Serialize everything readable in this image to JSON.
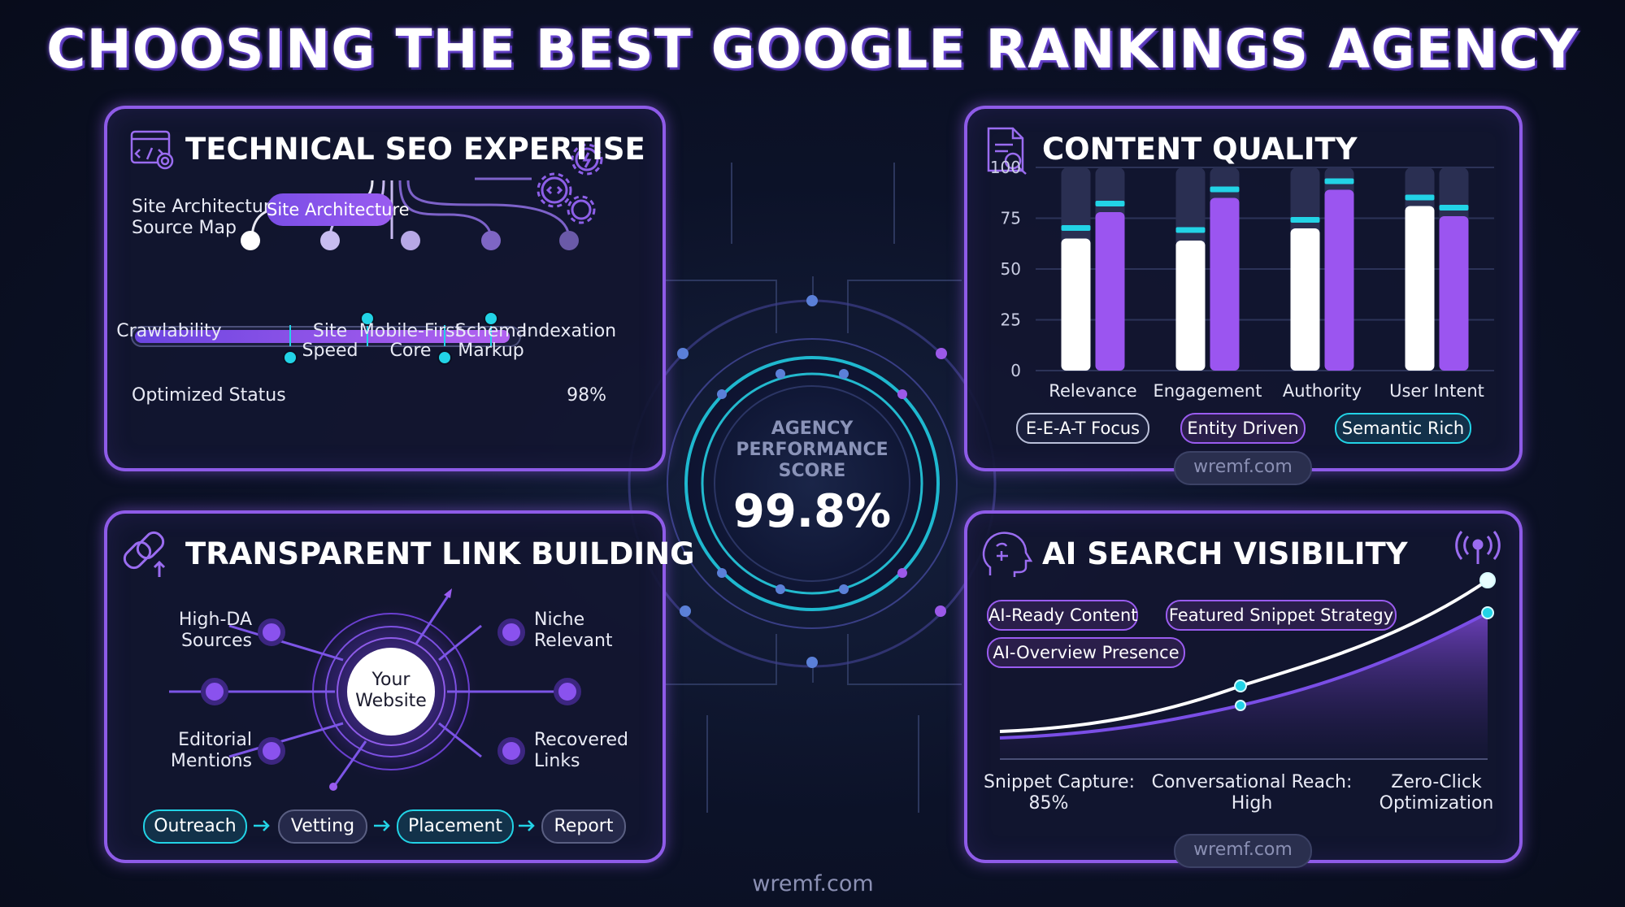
{
  "title": "CHOOSING THE BEST GOOGLE RANKINGS AGENCY",
  "center": {
    "label_line1": "AGENCY",
    "label_line2": "PERFORMANCE",
    "label_line3": "SCORE",
    "value": "99.8%"
  },
  "technical": {
    "title": "TECHNICAL SEO EXPERTISE",
    "map_label_line1": "Site Architecture",
    "map_label_line2": "Source Map",
    "root_pill": "Site Architecture",
    "nodes": [
      {
        "line1": "Crawlability",
        "line2": ""
      },
      {
        "line1": "Site",
        "line2": "Speed"
      },
      {
        "line1": "Mobile-First",
        "line2": "Core"
      },
      {
        "line1": "Schema",
        "line2": "Markup"
      },
      {
        "line1": "Indexation",
        "line2": ""
      }
    ],
    "status_label": "Optimized Status",
    "status_value": "98%",
    "progress": 0.98
  },
  "content": {
    "title": "CONTENT QUALITY",
    "tags": [
      "E-E-A-T Focus",
      "Entity Driven",
      "Semantic Rich"
    ],
    "watermark": "wremf.com"
  },
  "chart_data": {
    "type": "bar",
    "categories": [
      "Relevance",
      "Engagement",
      "Authority",
      "User Intent"
    ],
    "series": [
      {
        "values": [
          65,
          64,
          70,
          81
        ]
      },
      {
        "values": [
          78,
          85,
          89,
          76
        ]
      }
    ],
    "markers": [
      [
        70,
        82
      ],
      [
        69,
        89
      ],
      [
        74,
        93
      ],
      [
        85,
        80
      ]
    ],
    "yticks": [
      "0",
      "25",
      "50",
      "75",
      "100"
    ],
    "ylim": [
      0,
      100
    ],
    "grid": true
  },
  "link": {
    "title": "TRANSPARENT LINK BUILDING",
    "center_line1": "Your",
    "center_line2": "Website",
    "nodes": [
      {
        "line1": "High-DA",
        "line2": "Sources"
      },
      {
        "line1": "Niche",
        "line2": "Relevant"
      },
      {
        "line1": "Editorial",
        "line2": "Mentions"
      },
      {
        "line1": "Recovered",
        "line2": "Links"
      }
    ],
    "steps": [
      "Outreach",
      "Vetting",
      "Placement",
      "Report"
    ],
    "arrow": "→"
  },
  "ai": {
    "title": "AI SEARCH VISIBILITY",
    "tags": [
      "AI-Ready Content",
      "Featured Snippet Strategy",
      "AI-Overview Presence"
    ],
    "stats": [
      {
        "line1": "Snippet Capture:",
        "line2": "85%"
      },
      {
        "line1": "Conversational Reach:",
        "line2": "High"
      },
      {
        "line1": "Zero-Click",
        "line2": "Optimization"
      }
    ],
    "watermark": "wremf.com"
  },
  "footer": {
    "watermark": "wremf.com"
  },
  "colors": {
    "purple": "#8e5be8",
    "cyan": "#22d3e6",
    "bar_white": "#ffffff",
    "bar_purple": "#9b55f0"
  }
}
